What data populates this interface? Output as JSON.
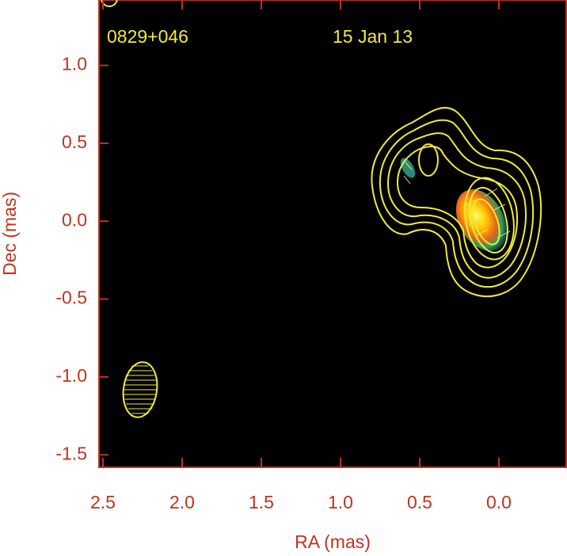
{
  "chart_data": {
    "type": "image",
    "source_label": "0829+046",
    "date_label": "15 Jan 13",
    "xlabel": "RA (mas)",
    "ylabel": "Dec (mas)",
    "xlim": [
      2.525,
      -0.43
    ],
    "ylim": [
      -1.58,
      1.42
    ],
    "xticks": [
      2.5,
      {
        "value": 2,
        "label": "2.0"
      },
      1.5,
      {
        "value": 1,
        "label": "1.0"
      },
      0.5,
      {
        "value": 0,
        "label": "0.0"
      }
    ],
    "yticks": [
      {
        "value": 1,
        "label": "1.0"
      },
      0.5,
      {
        "value": 0,
        "label": "0.0"
      },
      -0.5,
      {
        "value": -1,
        "label": "-1.0"
      },
      -1.5
    ],
    "axis_color": "#c0331d",
    "label_color": "#f2ea3a"
  }
}
